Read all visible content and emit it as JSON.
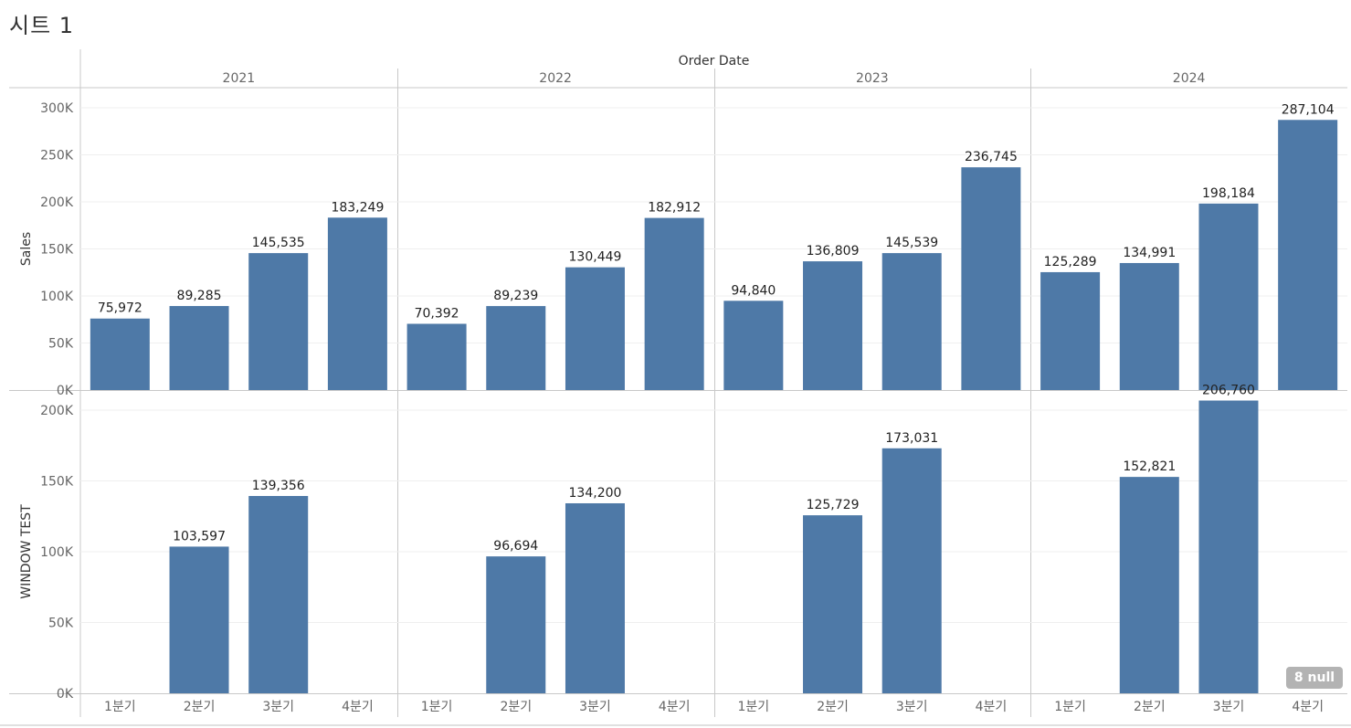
{
  "sheet_title": "시트 1",
  "null_badge": "8 null",
  "colors": {
    "bar": "#4e79a7",
    "grid": "#efefef",
    "divider": "#c8c8c8",
    "axis_text": "#666666",
    "label_text": "#222222"
  },
  "chart_data": {
    "type": "bar",
    "column_header": "Order Date",
    "years": [
      "2021",
      "2022",
      "2023",
      "2024"
    ],
    "categories": [
      "1분기",
      "2분기",
      "3분기",
      "4분기"
    ],
    "panes": [
      {
        "measure": "Sales",
        "ylim": [
          0,
          300000
        ],
        "ticks": [
          {
            "value": 0,
            "label": "0K"
          },
          {
            "value": 50000,
            "label": "50K"
          },
          {
            "value": 100000,
            "label": "100K"
          },
          {
            "value": 150000,
            "label": "150K"
          },
          {
            "value": 200000,
            "label": "200K"
          },
          {
            "value": 250000,
            "label": "250K"
          },
          {
            "value": 300000,
            "label": "300K"
          }
        ],
        "values": [
          [
            75972,
            89285,
            145535,
            183249
          ],
          [
            70392,
            89239,
            130449,
            182912
          ],
          [
            94840,
            136809,
            145539,
            236745
          ],
          [
            125289,
            134991,
            198184,
            287104
          ]
        ],
        "labels": [
          [
            "75,972",
            "89,285",
            "145,535",
            "183,249"
          ],
          [
            "70,392",
            "89,239",
            "130,449",
            "182,912"
          ],
          [
            "94,840",
            "136,809",
            "145,539",
            "236,745"
          ],
          [
            "125,289",
            "134,991",
            "198,184",
            "287,104"
          ]
        ]
      },
      {
        "measure": "WINDOW TEST",
        "ylim": [
          0,
          200000
        ],
        "ticks": [
          {
            "value": 0,
            "label": "0K"
          },
          {
            "value": 50000,
            "label": "50K"
          },
          {
            "value": 100000,
            "label": "100K"
          },
          {
            "value": 150000,
            "label": "150K"
          },
          {
            "value": 200000,
            "label": "200K"
          }
        ],
        "values": [
          [
            null,
            103597,
            139356,
            null
          ],
          [
            null,
            96694,
            134200,
            null
          ],
          [
            null,
            125729,
            173031,
            null
          ],
          [
            null,
            152821,
            206760,
            null
          ]
        ],
        "labels": [
          [
            null,
            "103,597",
            "139,356",
            null
          ],
          [
            null,
            "96,694",
            "134,200",
            null
          ],
          [
            null,
            "125,729",
            "173,031",
            null
          ],
          [
            null,
            "152,821",
            "206,760",
            null
          ]
        ]
      }
    ]
  }
}
